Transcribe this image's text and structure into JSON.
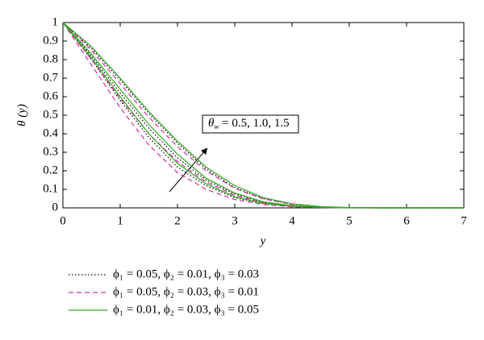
{
  "chart_data": {
    "type": "line",
    "x_label": "y",
    "y_label": "θ (y)",
    "annotation": {
      "symbol": "θ",
      "subscript": "w",
      "text": " = 0.5, 1.0, 1.5"
    },
    "x": [
      0,
      0.5,
      1,
      1.5,
      2,
      2.5,
      3,
      3.5,
      4,
      4.5,
      5,
      5.5,
      6,
      6.5,
      7
    ],
    "xlim": [
      0,
      7
    ],
    "xticks": [
      0,
      1,
      2,
      3,
      4,
      5,
      6,
      7
    ],
    "ylim": [
      0,
      1
    ],
    "yticks": [
      0,
      0.1,
      0.2,
      0.3,
      0.4,
      0.5,
      0.6,
      0.7,
      0.8,
      0.9,
      1
    ],
    "series": [
      {
        "name": "ϕ₁ = 0.05, ϕ₂ = 0.01, ϕ₃ = 0.03",
        "color": "#000000",
        "dash": "1.5,2.5",
        "curves": [
          [
            1,
            0.8,
            0.58,
            0.38,
            0.22,
            0.12,
            0.055,
            0.022,
            0.008,
            0.002,
            0,
            0,
            0,
            0,
            0
          ],
          [
            1,
            0.82,
            0.62,
            0.43,
            0.27,
            0.15,
            0.075,
            0.03,
            0.01,
            0.003,
            0.001,
            0,
            0,
            0,
            0
          ],
          [
            1,
            0.86,
            0.69,
            0.51,
            0.35,
            0.21,
            0.11,
            0.05,
            0.02,
            0.006,
            0.001,
            0,
            0,
            0,
            0
          ]
        ]
      },
      {
        "name": "ϕ₁ = 0.05, ϕ₂ = 0.03, ϕ₃ = 0.01",
        "color": "#cc3399",
        "dash": "6,4",
        "curves": [
          [
            1,
            0.77,
            0.54,
            0.34,
            0.19,
            0.1,
            0.045,
            0.018,
            0.006,
            0.002,
            0,
            0,
            0,
            0,
            0
          ],
          [
            1,
            0.8,
            0.59,
            0.4,
            0.25,
            0.14,
            0.068,
            0.028,
            0.009,
            0.003,
            0.001,
            0,
            0,
            0,
            0
          ],
          [
            1,
            0.85,
            0.67,
            0.49,
            0.33,
            0.2,
            0.105,
            0.048,
            0.019,
            0.006,
            0.001,
            0,
            0,
            0,
            0
          ]
        ]
      },
      {
        "name": "ϕ₁ = 0.01, ϕ₂ = 0.03, ϕ₃ = 0.05",
        "color": "#33aa22",
        "dash": "none",
        "curves": [
          [
            1,
            0.81,
            0.6,
            0.4,
            0.24,
            0.13,
            0.06,
            0.025,
            0.009,
            0.003,
            0,
            0,
            0,
            0,
            0
          ],
          [
            1,
            0.83,
            0.64,
            0.45,
            0.29,
            0.16,
            0.08,
            0.033,
            0.012,
            0.004,
            0.001,
            0,
            0,
            0,
            0
          ],
          [
            1,
            0.87,
            0.7,
            0.52,
            0.36,
            0.22,
            0.12,
            0.055,
            0.022,
            0.007,
            0.002,
            0,
            0,
            0,
            0
          ]
        ]
      }
    ]
  }
}
